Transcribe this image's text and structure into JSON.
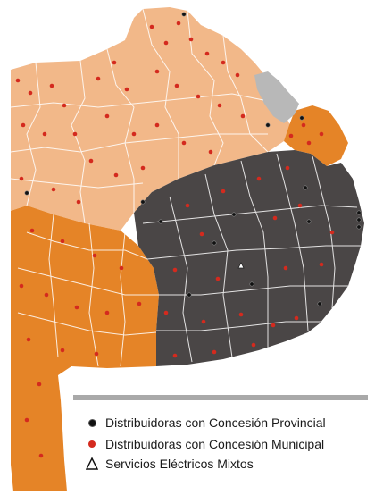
{
  "colors": {
    "provincial_region": "#4a4646",
    "north_region": "#f2b889",
    "south_region": "#e58427",
    "metro_region": "#b8b8b8",
    "boundaries": "#ffffff",
    "provincial_dot": "#111111",
    "municipal_dot": "#d42a1e"
  },
  "legend": {
    "items": [
      {
        "icon": "black-dot-icon",
        "label": "Distribuidoras con Concesión Provincial"
      },
      {
        "icon": "red-dot-icon",
        "label": "Distribuidoras con Concesión Municipal"
      },
      {
        "icon": "triangle-icon",
        "label": "Servicios Eléctricos Mixtos"
      }
    ]
  }
}
